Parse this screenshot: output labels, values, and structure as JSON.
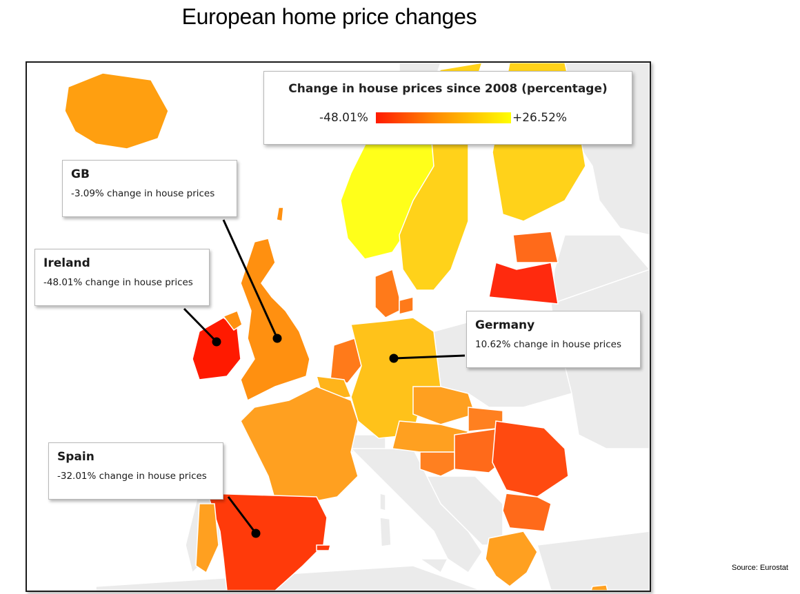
{
  "title": "European home price changes",
  "legend": {
    "title": "Change in house prices since 2008 (percentage)",
    "min_label": "-48.01%",
    "max_label": "+26.52%",
    "color_low": "#ff1a00",
    "color_mid": "#ff8c00",
    "color_high": "#ffff00"
  },
  "callouts": [
    {
      "name": "GB",
      "value": "-3.09% change in house prices"
    },
    {
      "name": "Ireland",
      "value": "-48.01% change in house prices"
    },
    {
      "name": "Germany",
      "value": "10.62% change in house prices"
    },
    {
      "name": "Spain",
      "value": "-32.01% change in house prices"
    }
  ],
  "source": "Source: Eurostat",
  "colors": {
    "no_data": "#ebebeb",
    "country_border": "#ffffff",
    "sea": "#ffffff"
  }
}
